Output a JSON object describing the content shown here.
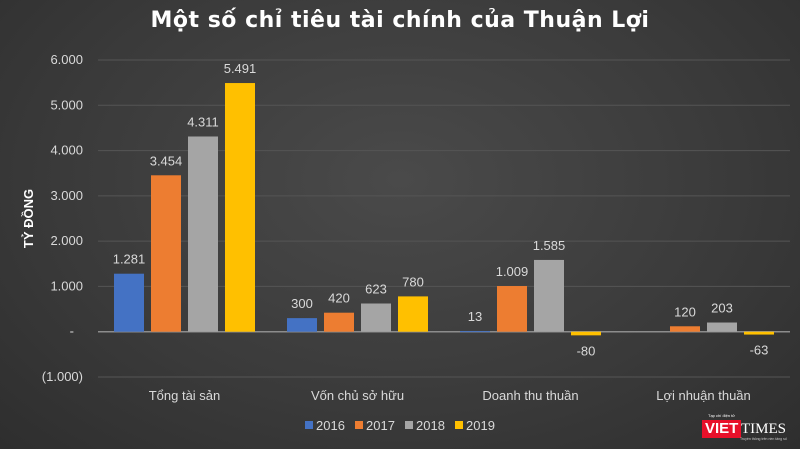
{
  "chart_data": {
    "type": "bar",
    "title": "Một số chỉ tiêu tài chính của Thuận Lợi",
    "ylabel": "TỶ ĐỒNG",
    "xlabel": "",
    "ylim": [
      -1000,
      6000
    ],
    "yticks": [
      {
        "v": 6000,
        "t": "6.000"
      },
      {
        "v": 5000,
        "t": "5.000"
      },
      {
        "v": 4000,
        "t": "4.000"
      },
      {
        "v": 3000,
        "t": "3.000"
      },
      {
        "v": 2000,
        "t": "2.000"
      },
      {
        "v": 1000,
        "t": "1.000"
      },
      {
        "v": 0,
        "t": "-"
      },
      {
        "v": -1000,
        "t": "(1.000)"
      }
    ],
    "grid": true,
    "legend_position": "bottom",
    "categories": [
      "Tổng tài sản",
      "Vốn chủ sở hữu",
      "Doanh thu thuần",
      "Lợi nhuận thuần"
    ],
    "series": [
      {
        "name": "2016",
        "color": "#4472c4",
        "values": [
          1281,
          300,
          13,
          null
        ],
        "labels": [
          "1.281",
          "300",
          "13",
          null
        ]
      },
      {
        "name": "2017",
        "color": "#ed7d31",
        "values": [
          3454,
          420,
          1009,
          120
        ],
        "labels": [
          "3.454",
          "420",
          "1.009",
          "120"
        ]
      },
      {
        "name": "2018",
        "color": "#a5a5a5",
        "values": [
          4311,
          623,
          1585,
          203
        ],
        "labels": [
          "4.311",
          "623",
          "1.585",
          "203"
        ]
      },
      {
        "name": "2019",
        "color": "#ffc000",
        "values": [
          5491,
          780,
          -80,
          -63
        ],
        "labels": [
          "5.491",
          "780",
          "-80",
          "-63"
        ]
      }
    ]
  },
  "logo": {
    "brand_red": "VIET",
    "brand_white": "TIMES",
    "small_text": "Tạp chí điện tử",
    "tagline": "Truyền thông trên nền tảng số"
  }
}
